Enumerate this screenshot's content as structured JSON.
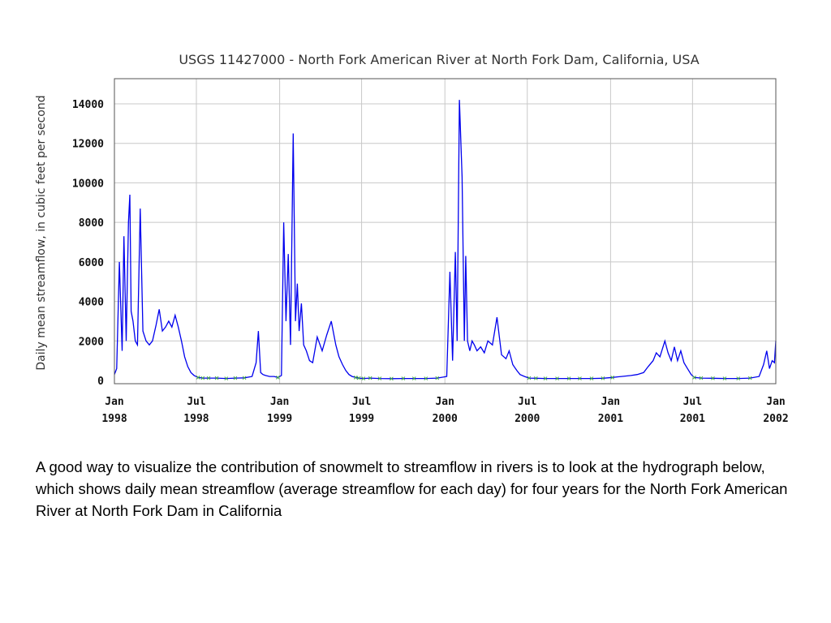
{
  "caption": "A good way to visualize the contribution of snowmelt to streamflow in rivers is to look at the hydrograph below, which shows daily mean streamflow (average streamflow for each day) for four years for the North Fork American River at North Fork Dam in California",
  "chart_data": {
    "type": "line",
    "title": "USGS 11427000 - North Fork American River at North Fork Dam, California, USA",
    "ylabel": "Daily mean streamflow, in cubic feet per second",
    "xlabel": "",
    "xlim": [
      "1998-01-01",
      "2002-01-01"
    ],
    "ylim": [
      0,
      15000
    ],
    "yticks": [
      0,
      2000,
      4000,
      6000,
      8000,
      10000,
      12000,
      14000
    ],
    "ytick_labels": [
      "0",
      "2000",
      "4000",
      "6000",
      "8000",
      "10000",
      "12000",
      "14000"
    ],
    "xticks": [
      {
        "date": "1998-01-01",
        "month": "Jan",
        "year": "1998"
      },
      {
        "date": "1998-07-01",
        "month": "Jul",
        "year": "1998"
      },
      {
        "date": "1999-01-01",
        "month": "Jan",
        "year": "1999"
      },
      {
        "date": "1999-07-01",
        "month": "Jul",
        "year": "1999"
      },
      {
        "date": "2000-01-01",
        "month": "Jan",
        "year": "2000"
      },
      {
        "date": "2000-07-01",
        "month": "Jul",
        "year": "2000"
      },
      {
        "date": "2001-01-01",
        "month": "Jan",
        "year": "2001"
      },
      {
        "date": "2001-07-01",
        "month": "Jul",
        "year": "2001"
      },
      {
        "date": "2002-01-01",
        "month": "Jan",
        "year": "2002"
      }
    ],
    "grid": true,
    "legend": "none",
    "series_color": "#0000ee",
    "marker_color": "#44aa44",
    "series": [
      {
        "x": [
          "1998-01-01",
          "1998-01-06",
          "1998-01-12",
          "1998-01-18",
          "1998-01-22",
          "1998-01-27",
          "1998-02-01",
          "1998-02-04",
          "1998-02-07",
          "1998-02-11",
          "1998-02-16",
          "1998-02-21",
          "1998-02-27",
          "1998-03-05",
          "1998-03-12",
          "1998-03-19",
          "1998-03-26",
          "1998-04-03",
          "1998-04-10",
          "1998-04-17",
          "1998-04-24",
          "1998-05-01",
          "1998-05-08",
          "1998-05-15",
          "1998-05-22",
          "1998-05-29",
          "1998-06-05",
          "1998-06-12",
          "1998-06-19",
          "1998-06-26",
          "1998-07-05",
          "1998-07-15",
          "1998-07-28",
          "1998-08-15",
          "1998-09-05",
          "1998-09-25",
          "1998-10-15",
          "1998-11-01",
          "1998-11-10",
          "1998-11-15",
          "1998-11-20",
          "1998-11-25",
          "1998-12-01",
          "1998-12-10",
          "1998-12-20",
          "1998-12-28",
          "1999-01-05",
          "1999-01-10",
          "1999-01-15",
          "1999-01-20",
          "1999-01-25",
          "1999-01-31",
          "1999-02-05",
          "1999-02-09",
          "1999-02-13",
          "1999-02-18",
          "1999-02-23",
          "1999-03-01",
          "1999-03-08",
          "1999-03-15",
          "1999-03-25",
          "1999-04-05",
          "1999-04-15",
          "1999-04-25",
          "1999-05-05",
          "1999-05-12",
          "1999-05-20",
          "1999-05-27",
          "1999-06-03",
          "1999-06-10",
          "1999-06-18",
          "1999-06-25",
          "1999-07-05",
          "1999-07-20",
          "1999-08-10",
          "1999-09-05",
          "1999-10-01",
          "1999-10-25",
          "1999-11-20",
          "1999-12-15",
          "2000-01-05",
          "2000-01-12",
          "2000-01-18",
          "2000-01-24",
          "2000-01-28",
          "2000-02-02",
          "2000-02-08",
          "2000-02-13",
          "2000-02-16",
          "2000-02-20",
          "2000-02-25",
          "2000-03-01",
          "2000-03-06",
          "2000-03-12",
          "2000-03-20",
          "2000-03-28",
          "2000-04-05",
          "2000-04-15",
          "2000-04-25",
          "2000-05-05",
          "2000-05-15",
          "2000-05-22",
          "2000-05-30",
          "2000-06-08",
          "2000-06-15",
          "2000-06-25",
          "2000-07-05",
          "2000-07-20",
          "2000-08-10",
          "2000-09-05",
          "2000-10-01",
          "2000-10-25",
          "2000-11-20",
          "2000-12-15",
          "2001-01-05",
          "2001-01-25",
          "2001-02-15",
          "2001-03-01",
          "2001-03-15",
          "2001-03-25",
          "2001-04-05",
          "2001-04-12",
          "2001-04-20",
          "2001-05-01",
          "2001-05-08",
          "2001-05-15",
          "2001-05-22",
          "2001-05-29",
          "2001-06-05",
          "2001-06-12",
          "2001-06-20",
          "2001-06-28",
          "2001-07-05",
          "2001-07-20",
          "2001-08-15",
          "2001-09-10",
          "2001-10-10",
          "2001-11-05",
          "2001-11-25",
          "2001-12-05",
          "2001-12-12",
          "2001-12-18",
          "2001-12-24",
          "2001-12-29",
          "2002-01-01"
        ],
        "y": [
          300,
          600,
          6000,
          1500,
          7300,
          2000,
          8000,
          9400,
          3500,
          3000,
          2000,
          1800,
          8700,
          2500,
          2000,
          1800,
          2000,
          2800,
          3600,
          2500,
          2700,
          3000,
          2700,
          3300,
          2700,
          2000,
          1200,
          700,
          400,
          250,
          150,
          120,
          120,
          120,
          100,
          120,
          130,
          200,
          900,
          2500,
          400,
          300,
          250,
          200,
          200,
          150,
          250,
          8000,
          3000,
          6400,
          1800,
          12500,
          3000,
          4900,
          2500,
          3900,
          1800,
          1500,
          1000,
          900,
          2200,
          1500,
          2300,
          3000,
          1800,
          1200,
          800,
          500,
          300,
          200,
          150,
          120,
          100,
          120,
          100,
          90,
          100,
          100,
          100,
          120,
          200,
          5500,
          1000,
          6500,
          2000,
          14200,
          10300,
          2000,
          6300,
          2000,
          1500,
          2000,
          1800,
          1500,
          1700,
          1400,
          2000,
          1800,
          3200,
          1300,
          1100,
          1500,
          800,
          500,
          300,
          200,
          120,
          110,
          100,
          100,
          100,
          100,
          100,
          110,
          150,
          200,
          250,
          300,
          400,
          700,
          1000,
          1400,
          1200,
          2000,
          1400,
          1000,
          1700,
          1000,
          1500,
          900,
          600,
          300,
          150,
          120,
          110,
          100,
          100,
          120,
          200,
          800,
          1500,
          600,
          1000,
          900,
          2000
        ]
      }
    ]
  }
}
